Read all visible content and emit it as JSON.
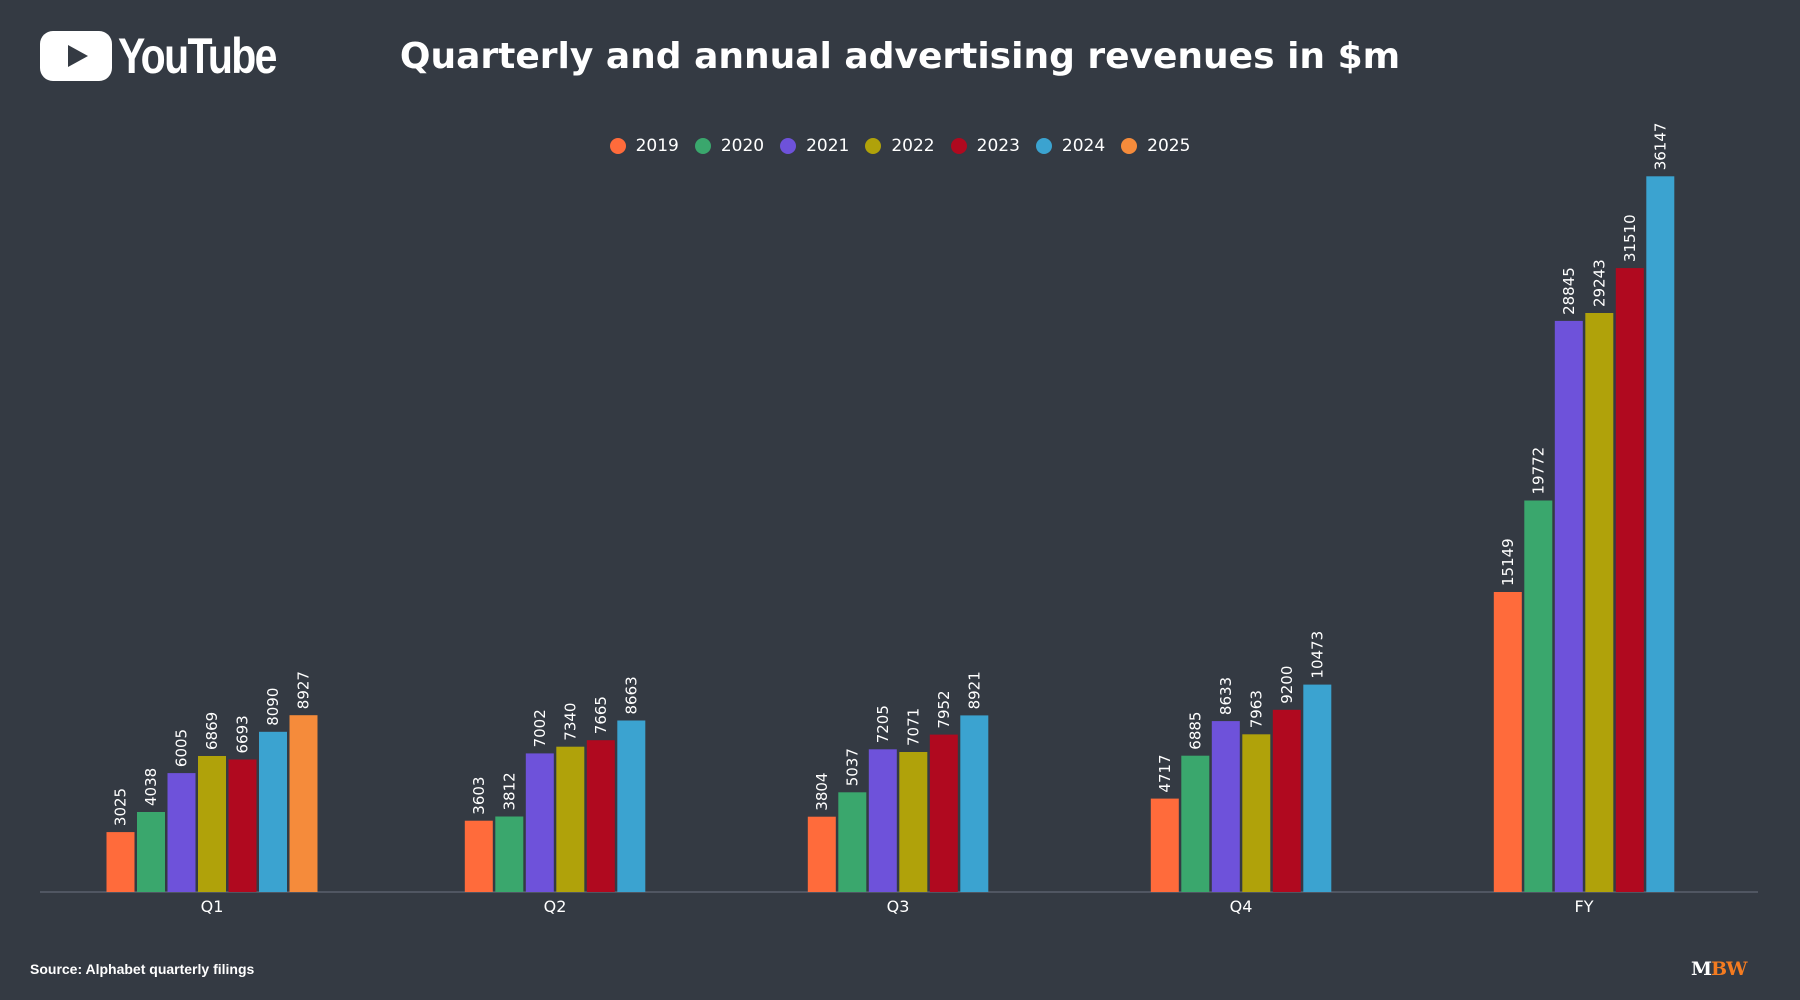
{
  "brand": {
    "logo_text": "YouTube"
  },
  "source": "Source: Alphabet quarterly filings",
  "publisher": {
    "m": "M",
    "bw": "BW"
  },
  "chart_data": {
    "type": "bar",
    "title": "Quarterly and annual advertising revenues in $m",
    "xlabel": "",
    "ylabel": "",
    "ylim": [
      0,
      40000
    ],
    "grid": false,
    "legend_position": "top-center",
    "categories": [
      "Q1",
      "Q2",
      "Q3",
      "Q4",
      "FY"
    ],
    "series": [
      {
        "name": "2019",
        "color": "#ff6b3b",
        "values": [
          3025,
          3603,
          3804,
          4717,
          15149
        ]
      },
      {
        "name": "2020",
        "color": "#3aa76d",
        "values": [
          4038,
          3812,
          5037,
          6885,
          19772
        ]
      },
      {
        "name": "2021",
        "color": "#6e52da",
        "values": [
          6005,
          7002,
          7205,
          8633,
          28845
        ]
      },
      {
        "name": "2022",
        "color": "#b0a20a",
        "values": [
          6869,
          7340,
          7071,
          7963,
          29243
        ]
      },
      {
        "name": "2023",
        "color": "#b0091f",
        "values": [
          6693,
          7665,
          7952,
          9200,
          31510
        ]
      },
      {
        "name": "2024",
        "color": "#3ba3d0",
        "values": [
          8090,
          8663,
          8921,
          10473,
          36147
        ]
      },
      {
        "name": "2025",
        "color": "#f58b3b",
        "values": [
          8927,
          null,
          null,
          null,
          null
        ]
      }
    ]
  }
}
